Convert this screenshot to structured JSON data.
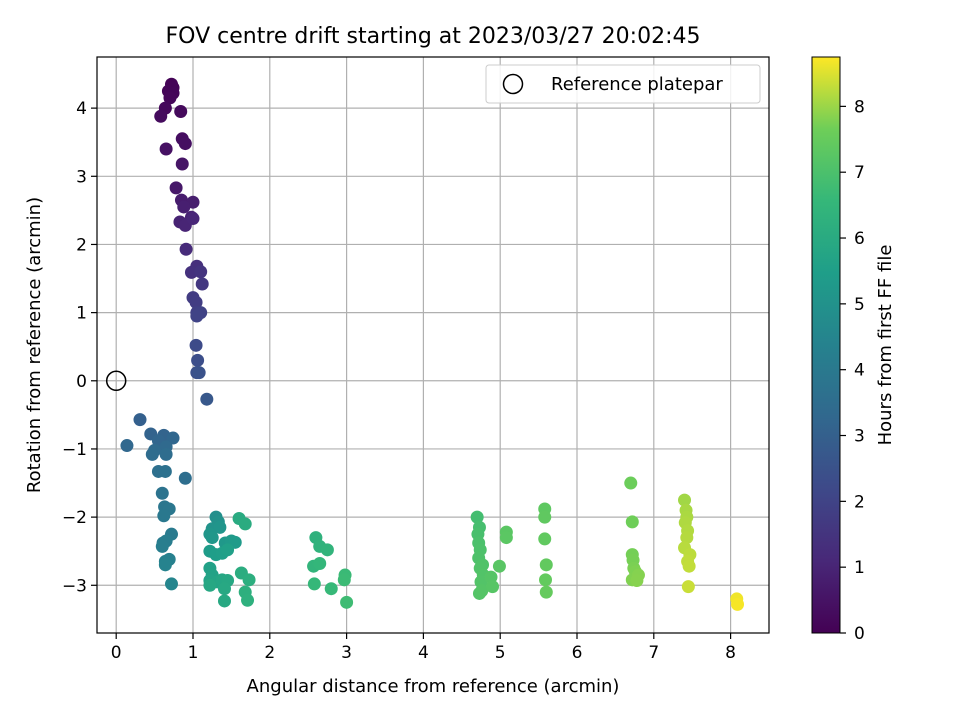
{
  "chart_data": {
    "type": "scatter",
    "title": "FOV centre drift starting at 2023/03/27 20:02:45",
    "xlabel": "Angular distance from reference (arcmin)",
    "ylabel": "Rotation from reference (arcmin)",
    "xlim": [
      -0.25,
      8.5
    ],
    "ylim": [
      -3.7,
      4.75
    ],
    "xticks": [
      0,
      1,
      2,
      3,
      4,
      5,
      6,
      7,
      8
    ],
    "yticks": [
      -3,
      -2,
      -1,
      0,
      1,
      2,
      3,
      4
    ],
    "grid": true,
    "legend": {
      "position": "top-right",
      "entries": [
        "Reference platepar"
      ]
    },
    "reference_point": {
      "x": 0,
      "y": 0
    },
    "colorbar": {
      "label": "Hours from first FF file",
      "colormap": "viridis",
      "range": [
        0,
        8.75
      ],
      "ticks": [
        0,
        1,
        2,
        3,
        4,
        5,
        6,
        7,
        8
      ]
    },
    "series": [
      {
        "color_by": "hours",
        "points": [
          [
            0.72,
            4.35,
            0.05
          ],
          [
            0.74,
            4.3,
            0.08
          ],
          [
            0.68,
            4.25,
            0.1
          ],
          [
            0.74,
            4.22,
            0.12
          ],
          [
            0.7,
            4.15,
            0.15
          ],
          [
            0.64,
            4.0,
            0.2
          ],
          [
            0.84,
            3.95,
            0.25
          ],
          [
            0.58,
            3.88,
            0.28
          ],
          [
            0.86,
            3.55,
            0.35
          ],
          [
            0.9,
            3.48,
            0.4
          ],
          [
            0.65,
            3.4,
            0.45
          ],
          [
            0.86,
            3.18,
            0.55
          ],
          [
            0.78,
            2.83,
            0.65
          ],
          [
            0.85,
            2.65,
            0.75
          ],
          [
            1.0,
            2.62,
            0.8
          ],
          [
            0.88,
            2.55,
            0.85
          ],
          [
            0.98,
            2.4,
            0.9
          ],
          [
            0.83,
            2.33,
            0.95
          ],
          [
            0.9,
            2.28,
            1.0
          ],
          [
            1.0,
            2.38,
            1.05
          ],
          [
            0.91,
            1.93,
            1.2
          ],
          [
            1.05,
            1.68,
            1.35
          ],
          [
            0.98,
            1.59,
            1.4
          ],
          [
            1.1,
            1.6,
            1.5
          ],
          [
            1.12,
            1.42,
            1.6
          ],
          [
            1.0,
            1.22,
            1.75
          ],
          [
            1.04,
            1.15,
            1.8
          ],
          [
            1.05,
            1.0,
            1.9
          ],
          [
            1.1,
            1.0,
            1.95
          ],
          [
            1.05,
            0.95,
            2.0
          ],
          [
            1.04,
            0.52,
            2.25
          ],
          [
            1.06,
            0.3,
            2.35
          ],
          [
            1.05,
            0.12,
            2.45
          ],
          [
            1.08,
            0.12,
            2.5
          ],
          [
            1.18,
            -0.27,
            2.7
          ],
          [
            0.31,
            -0.57,
            3.0
          ],
          [
            0.45,
            -0.78,
            3.1
          ],
          [
            0.62,
            -0.8,
            3.15
          ],
          [
            0.55,
            -0.88,
            3.2
          ],
          [
            0.74,
            -0.84,
            3.25
          ],
          [
            0.14,
            -0.95,
            3.3
          ],
          [
            0.65,
            -0.97,
            3.35
          ],
          [
            0.5,
            -1.02,
            3.4
          ],
          [
            0.47,
            -1.08,
            3.45
          ],
          [
            0.65,
            -1.08,
            3.5
          ],
          [
            0.9,
            -1.43,
            3.55
          ],
          [
            0.55,
            -1.33,
            3.6
          ],
          [
            0.64,
            -1.33,
            3.65
          ],
          [
            0.6,
            -1.65,
            3.75
          ],
          [
            0.63,
            -1.85,
            3.85
          ],
          [
            0.69,
            -1.88,
            3.9
          ],
          [
            0.62,
            -1.98,
            3.95
          ],
          [
            0.72,
            -2.25,
            4.05
          ],
          [
            0.61,
            -2.38,
            4.1
          ],
          [
            0.65,
            -2.35,
            4.15
          ],
          [
            0.6,
            -2.43,
            4.2
          ],
          [
            0.69,
            -2.62,
            4.3
          ],
          [
            0.64,
            -2.65,
            4.35
          ],
          [
            0.64,
            -2.7,
            4.4
          ],
          [
            0.72,
            -2.98,
            4.5
          ],
          [
            1.3,
            -2.0,
            4.9
          ],
          [
            1.33,
            -2.07,
            5.0
          ],
          [
            1.25,
            -2.17,
            5.05
          ],
          [
            1.35,
            -2.15,
            5.1
          ],
          [
            1.22,
            -2.25,
            5.15
          ],
          [
            1.25,
            -2.3,
            5.2
          ],
          [
            1.42,
            -2.38,
            5.25
          ],
          [
            1.5,
            -2.35,
            5.3
          ],
          [
            1.55,
            -2.37,
            5.35
          ],
          [
            1.22,
            -2.5,
            5.4
          ],
          [
            1.3,
            -2.55,
            5.45
          ],
          [
            1.38,
            -2.53,
            5.5
          ],
          [
            1.45,
            -2.48,
            5.55
          ],
          [
            1.22,
            -2.75,
            5.6
          ],
          [
            1.25,
            -2.85,
            5.65
          ],
          [
            1.22,
            -2.93,
            5.7
          ],
          [
            1.32,
            -2.95,
            5.75
          ],
          [
            1.38,
            -2.92,
            5.8
          ],
          [
            1.45,
            -2.93,
            5.85
          ],
          [
            1.22,
            -3.0,
            5.88
          ],
          [
            1.41,
            -3.05,
            5.9
          ],
          [
            1.41,
            -3.23,
            5.92
          ],
          [
            1.6,
            -2.02,
            6.0
          ],
          [
            1.68,
            -2.1,
            6.05
          ],
          [
            1.63,
            -2.82,
            6.1
          ],
          [
            1.73,
            -2.92,
            6.15
          ],
          [
            1.68,
            -3.1,
            6.2
          ],
          [
            1.71,
            -3.22,
            6.25
          ],
          [
            2.6,
            -2.3,
            6.3
          ],
          [
            2.65,
            -2.43,
            6.35
          ],
          [
            2.75,
            -2.48,
            6.4
          ],
          [
            2.57,
            -2.72,
            6.45
          ],
          [
            2.65,
            -2.68,
            6.5
          ],
          [
            2.58,
            -2.98,
            6.55
          ],
          [
            2.8,
            -3.05,
            6.6
          ],
          [
            2.98,
            -2.85,
            6.65
          ],
          [
            2.97,
            -2.92,
            6.7
          ],
          [
            3.0,
            -3.25,
            6.75
          ],
          [
            4.7,
            -2.0,
            6.85
          ],
          [
            4.73,
            -2.15,
            6.9
          ],
          [
            4.71,
            -2.25,
            6.95
          ],
          [
            4.72,
            -2.38,
            7.0
          ],
          [
            4.74,
            -2.48,
            7.02
          ],
          [
            4.72,
            -2.6,
            7.05
          ],
          [
            4.77,
            -2.7,
            7.08
          ],
          [
            4.74,
            -2.75,
            7.1
          ],
          [
            4.78,
            -2.85,
            7.12
          ],
          [
            4.75,
            -2.95,
            7.14
          ],
          [
            4.73,
            -3.12,
            7.16
          ],
          [
            4.76,
            -3.08,
            7.18
          ],
          [
            4.88,
            -2.88,
            7.2
          ],
          [
            4.9,
            -3.02,
            7.22
          ],
          [
            4.99,
            -2.72,
            7.25
          ],
          [
            5.08,
            -2.22,
            7.28
          ],
          [
            5.08,
            -2.3,
            7.3
          ],
          [
            5.58,
            -1.88,
            7.35
          ],
          [
            5.58,
            -2.0,
            7.38
          ],
          [
            5.58,
            -2.32,
            7.4
          ],
          [
            5.6,
            -2.7,
            7.42
          ],
          [
            5.59,
            -2.92,
            7.45
          ],
          [
            5.6,
            -3.1,
            7.48
          ],
          [
            6.7,
            -1.5,
            7.6
          ],
          [
            6.72,
            -2.07,
            7.65
          ],
          [
            6.72,
            -2.55,
            7.7
          ],
          [
            6.73,
            -2.63,
            7.72
          ],
          [
            6.74,
            -2.75,
            7.75
          ],
          [
            6.76,
            -2.8,
            7.78
          ],
          [
            6.72,
            -2.92,
            7.8
          ],
          [
            6.8,
            -2.85,
            7.83
          ],
          [
            6.78,
            -2.93,
            7.85
          ],
          [
            7.4,
            -1.75,
            8.05
          ],
          [
            7.42,
            -1.9,
            8.1
          ],
          [
            7.43,
            -2.0,
            8.12
          ],
          [
            7.41,
            -2.08,
            8.15
          ],
          [
            7.44,
            -2.2,
            8.18
          ],
          [
            7.43,
            -2.3,
            8.2
          ],
          [
            7.4,
            -2.45,
            8.22
          ],
          [
            7.47,
            -2.55,
            8.25
          ],
          [
            7.44,
            -2.65,
            8.28
          ],
          [
            7.46,
            -2.72,
            8.3
          ],
          [
            7.45,
            -3.02,
            8.35
          ],
          [
            8.08,
            -3.2,
            8.65
          ],
          [
            8.09,
            -3.28,
            8.7
          ]
        ]
      }
    ]
  }
}
